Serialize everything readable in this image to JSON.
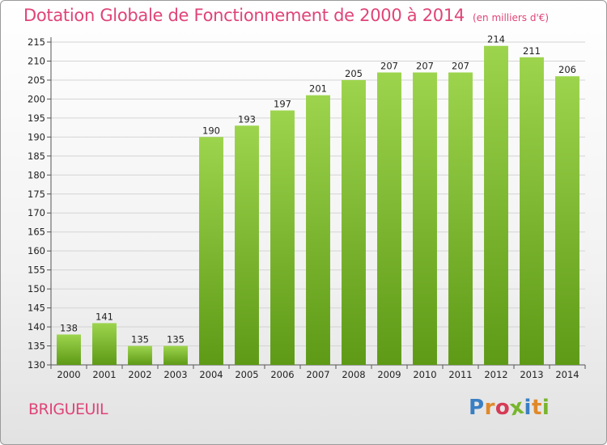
{
  "header": {
    "title": "Dotation Globale de Fonctionnement de 2000 à 2014",
    "subtitle": "(en milliers d'€)"
  },
  "footer": {
    "commune": "BRIGUEUIL",
    "logo_letters": [
      "P",
      "r",
      "o",
      "x",
      "i",
      "t",
      "i"
    ],
    "logo_colors": [
      "#3a7fc4",
      "#e0892a",
      "#d63b55",
      "#78b52e",
      "#3a7fc4",
      "#e0892a",
      "#78b52e"
    ]
  },
  "colors": {
    "bar_top": "#9dd44d",
    "bar_bottom": "#5e9a16",
    "grid": "#d4d4d4",
    "title": "#e04477"
  },
  "chart_data": {
    "type": "bar",
    "categories": [
      "2000",
      "2001",
      "2002",
      "2003",
      "2004",
      "2005",
      "2006",
      "2007",
      "2008",
      "2009",
      "2010",
      "2011",
      "2012",
      "2013",
      "2014"
    ],
    "values": [
      138,
      141,
      135,
      135,
      190,
      193,
      197,
      201,
      205,
      207,
      207,
      207,
      214,
      211,
      206
    ],
    "data_labels": [
      "138",
      "141",
      "135",
      "135",
      "190",
      "193",
      "197",
      "201",
      "205",
      "207",
      "207",
      "207",
      "214",
      "211",
      "206"
    ],
    "ylim": [
      130,
      215
    ],
    "yticks": [
      130,
      135,
      140,
      145,
      150,
      155,
      160,
      165,
      170,
      175,
      180,
      185,
      190,
      195,
      200,
      205,
      210,
      215
    ],
    "ytick_labels": [
      "130",
      "135",
      "140",
      "145",
      "150",
      "155",
      "160",
      "165",
      "170",
      "175",
      "180",
      "185",
      "190",
      "195",
      "200",
      "205",
      "210",
      "215"
    ],
    "grid": true,
    "xlabel": "",
    "ylabel": ""
  }
}
